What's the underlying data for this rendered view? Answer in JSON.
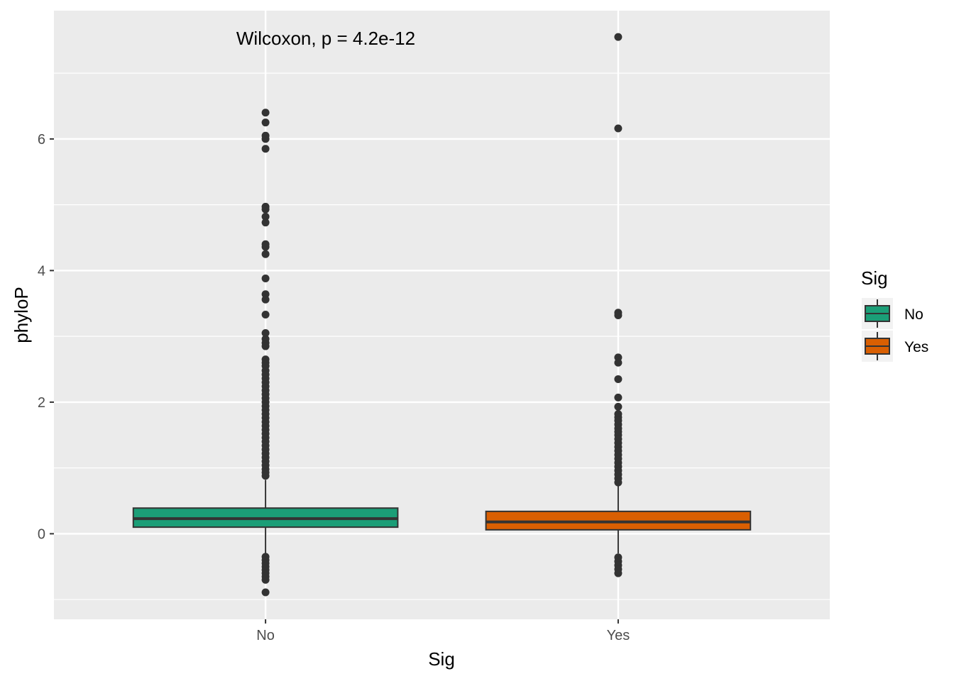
{
  "chart_data": {
    "type": "boxplot",
    "title": "",
    "xlabel": "Sig",
    "ylabel": "phyloP",
    "categories": [
      "No",
      "Yes"
    ],
    "ylim": [
      -1.3,
      7.95
    ],
    "yticks": [
      0,
      2,
      4,
      6
    ],
    "grid": true,
    "annotation": "Wilcoxon, p = 4.2e-12",
    "legend": {
      "title": "Sig",
      "position": "right",
      "entries": [
        {
          "label": "No",
          "color": "#1b9e77"
        },
        {
          "label": "Yes",
          "color": "#d95f02"
        }
      ]
    },
    "boxes": [
      {
        "name": "No",
        "color": "#1b9e77",
        "q1": 0.1,
        "median": 0.23,
        "q3": 0.39,
        "whisker_low": -0.32,
        "whisker_high": 0.82,
        "outliers": [
          6.4,
          6.25,
          6.05,
          6.0,
          5.85,
          4.97,
          4.93,
          4.82,
          4.73,
          4.4,
          4.36,
          4.25,
          3.88,
          3.64,
          3.56,
          3.33,
          3.05,
          2.96,
          2.9,
          2.85,
          2.65,
          2.6,
          2.55,
          2.48,
          2.42,
          2.36,
          2.3,
          2.24,
          2.18,
          2.12,
          2.06,
          2.0,
          1.94,
          1.88,
          1.82,
          1.76,
          1.7,
          1.64,
          1.58,
          1.52,
          1.46,
          1.4,
          1.34,
          1.28,
          1.22,
          1.16,
          1.1,
          1.04,
          0.98,
          0.93,
          0.88,
          -0.35,
          -0.4,
          -0.45,
          -0.5,
          -0.55,
          -0.6,
          -0.65,
          -0.7,
          -0.89
        ]
      },
      {
        "name": "Yes",
        "color": "#d95f02",
        "q1": 0.06,
        "median": 0.18,
        "q3": 0.34,
        "whisker_low": -0.3,
        "whisker_high": 0.73,
        "outliers": [
          7.55,
          6.16,
          3.36,
          3.32,
          2.68,
          2.6,
          2.35,
          2.07,
          1.93,
          1.82,
          1.77,
          1.72,
          1.66,
          1.6,
          1.55,
          1.5,
          1.44,
          1.38,
          1.32,
          1.26,
          1.2,
          1.14,
          1.08,
          1.02,
          0.96,
          0.9,
          0.84,
          0.78,
          -0.36,
          -0.42,
          -0.48,
          -0.54,
          -0.6
        ]
      }
    ]
  }
}
